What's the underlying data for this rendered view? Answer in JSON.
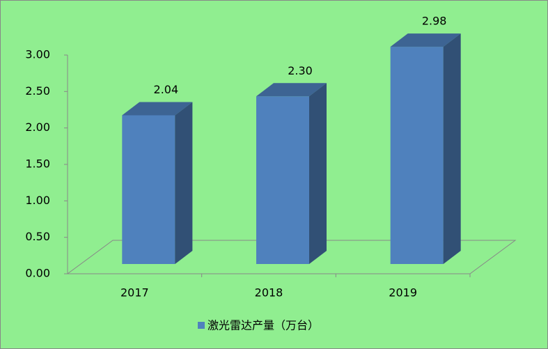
{
  "chart_data": {
    "type": "bar3d",
    "categories": [
      "2017",
      "2018",
      "2019"
    ],
    "series": [
      {
        "name": "激光雷达产量（万台）",
        "color": "#4f81bd",
        "values": [
          2.04,
          2.3,
          2.98
        ],
        "value_labels": [
          "2.04",
          "2.30",
          "2.98"
        ]
      }
    ],
    "ylim": [
      0,
      3
    ],
    "yticks": [
      {
        "value": 0,
        "label": "0.00"
      },
      {
        "value": 0.5,
        "label": "0.50"
      },
      {
        "value": 1,
        "label": "1.00"
      },
      {
        "value": 1.5,
        "label": "1.50"
      },
      {
        "value": 2,
        "label": "2.00"
      },
      {
        "value": 2.5,
        "label": "2.50"
      },
      {
        "value": 3,
        "label": "3.00"
      }
    ],
    "legend": "bottom"
  }
}
